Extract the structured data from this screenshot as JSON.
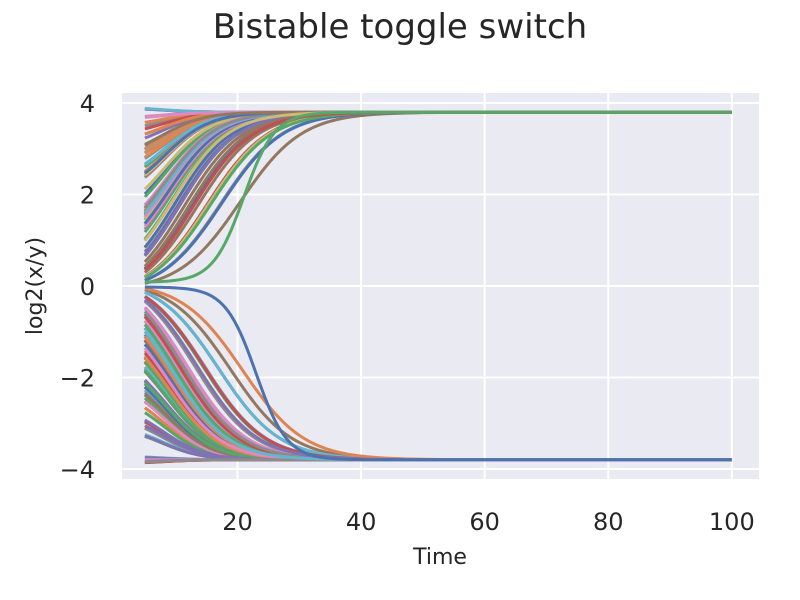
{
  "chart_data": {
    "type": "line",
    "title": "Bistable toggle switch",
    "xlabel": "Time",
    "ylabel": "log2(x/y)",
    "xlim": [
      1.3,
      104.4
    ],
    "ylim": [
      -4.22,
      4.22
    ],
    "x_ticks": [
      20,
      40,
      60,
      80,
      100
    ],
    "y_ticks": [
      4,
      2,
      0,
      -2,
      -4
    ],
    "x_tick_labels": [
      "20",
      "40",
      "60",
      "80",
      "100"
    ],
    "y_tick_labels": [
      "4",
      "2",
      "0",
      "−2",
      "−4"
    ],
    "grid": true,
    "legend": "none",
    "background": "#eaeaf2",
    "grid_color": "#ffffff",
    "palette": [
      "#4c72b0",
      "#dd8452",
      "#55a868",
      "#c44e52",
      "#8172b3",
      "#937860",
      "#da8bc3",
      "#8c8c8c",
      "#ccb974",
      "#64b5cd"
    ],
    "x_range": [
      5,
      100
    ],
    "upper_steady_state": 3.8,
    "lower_steady_state": -3.8,
    "series_description": "many trajectories starting near x=5 at initial values spread between -3.9 and 3.9; positive starts converge to 3.8, negative starts converge to -3.8; slowest ones start near 0"
  }
}
